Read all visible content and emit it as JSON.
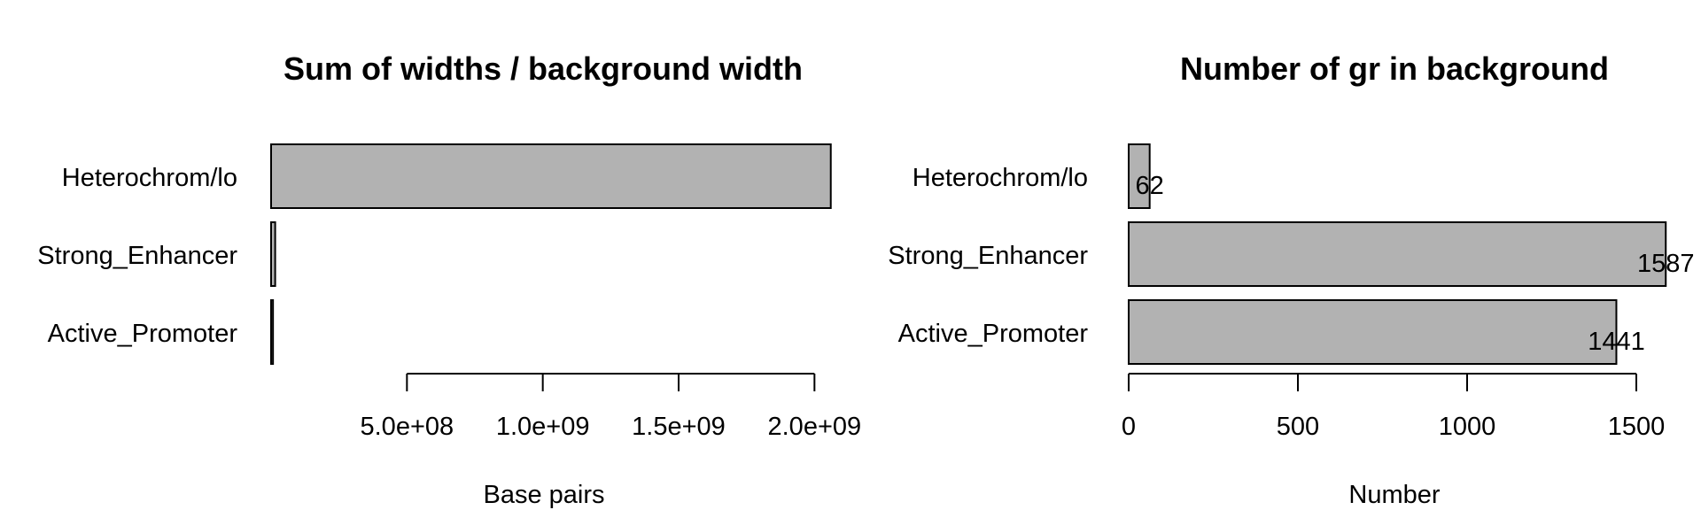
{
  "chart_data": [
    {
      "type": "bar",
      "orientation": "horizontal",
      "title": "Sum of widths / background width",
      "xlabel": "Base pairs",
      "categories": [
        "Active_Promoter",
        "Strong_Enhancer",
        "Heterochrom/lo"
      ],
      "values": [
        7000000,
        15000000,
        2060000000
      ],
      "xlim": [
        0,
        2000000000
      ],
      "ticks": [
        500000000,
        1000000000,
        1500000000,
        2000000000
      ],
      "tick_labels": [
        "5.0e+08",
        "1.0e+09",
        "1.5e+09",
        "2.0e+09"
      ],
      "bar_labels": [],
      "grid": false,
      "color": "#b2b2b2"
    },
    {
      "type": "bar",
      "orientation": "horizontal",
      "title": "Number of gr in background",
      "xlabel": "Number",
      "categories": [
        "Active_Promoter",
        "Strong_Enhancer",
        "Heterochrom/lo"
      ],
      "values": [
        1441,
        1587,
        62
      ],
      "xlim": [
        0,
        1500
      ],
      "ticks": [
        0,
        500,
        1000,
        1500
      ],
      "tick_labels": [
        "0",
        "500",
        "1000",
        "1500"
      ],
      "bar_labels": [
        "1441",
        "1587",
        "62"
      ],
      "grid": false,
      "color": "#b2b2b2"
    }
  ]
}
